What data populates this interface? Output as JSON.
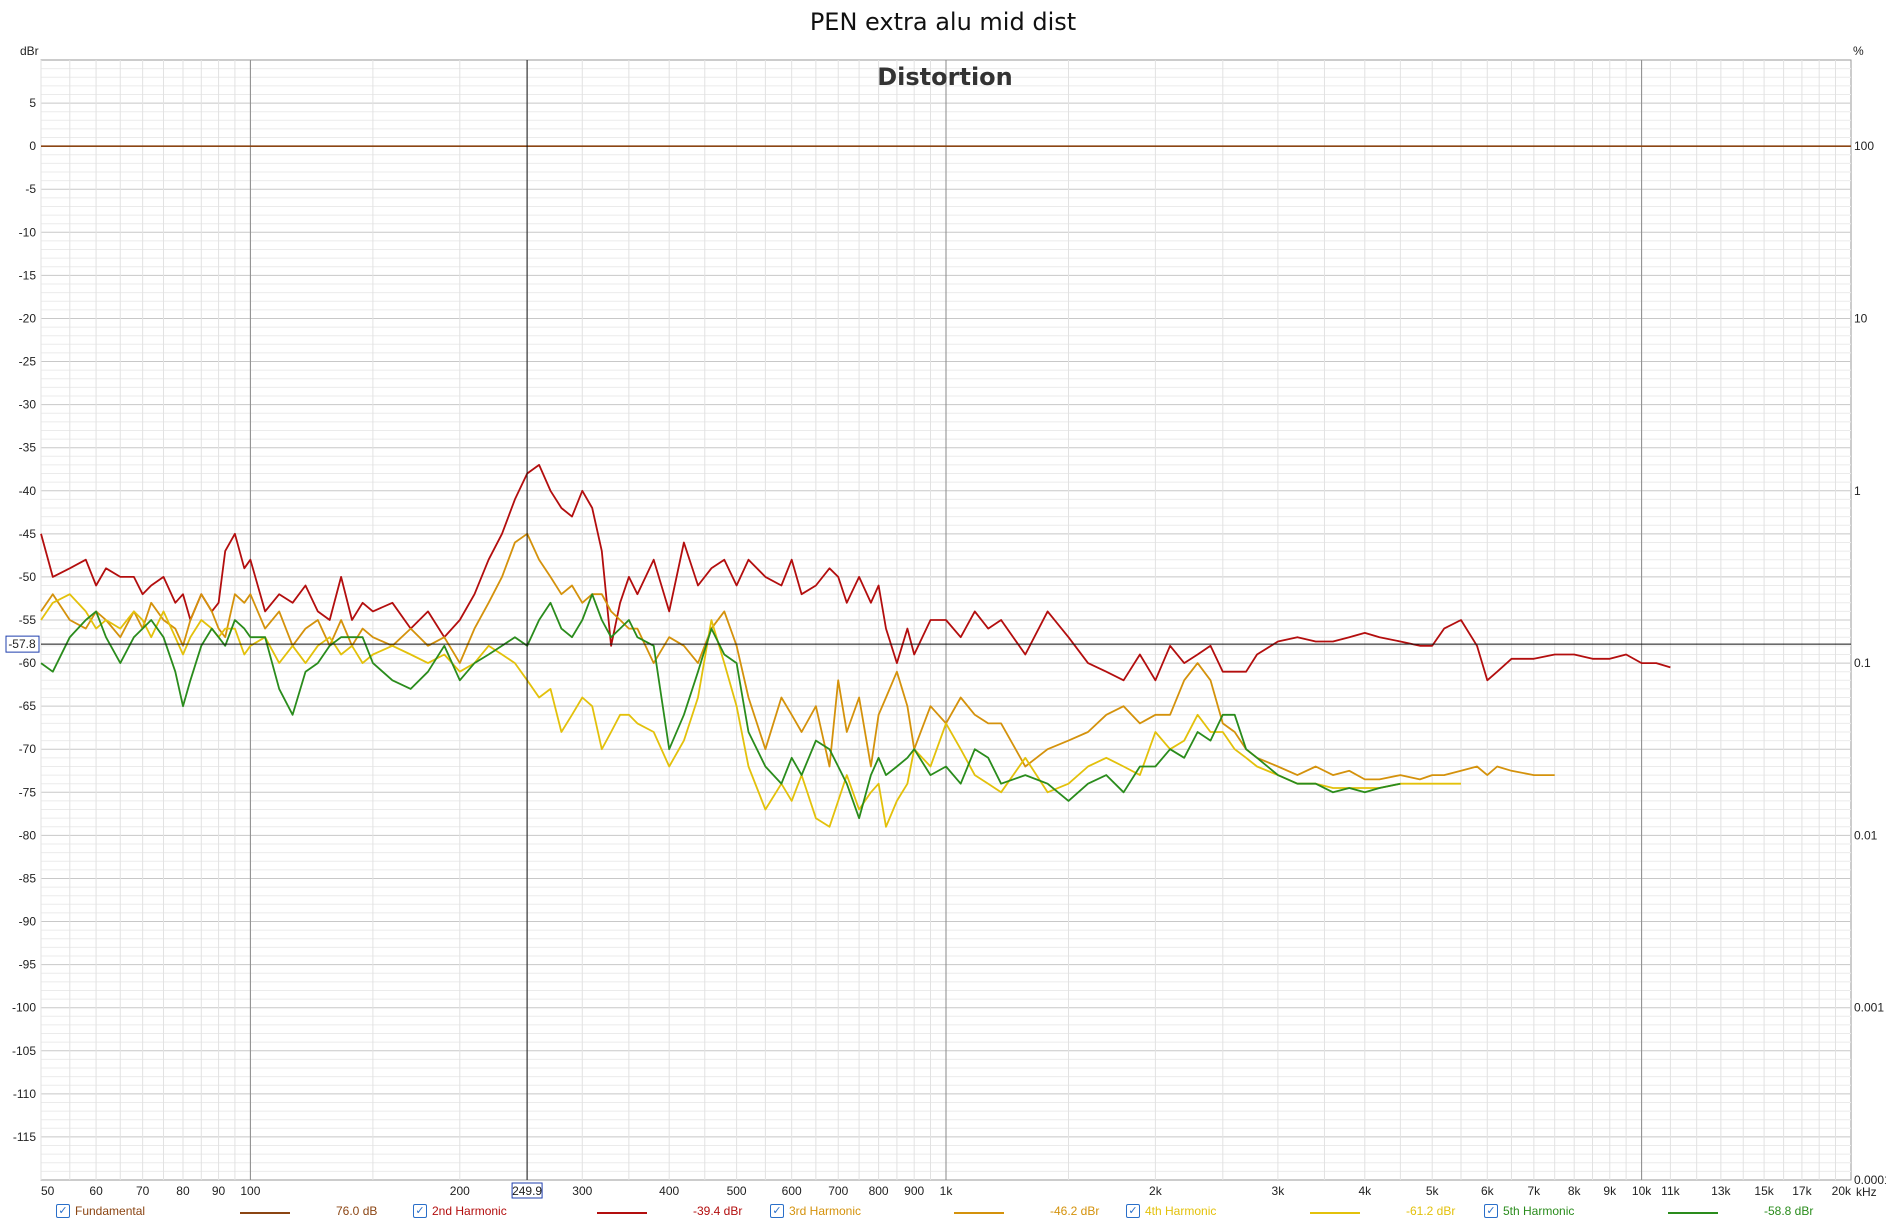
{
  "chart_data": {
    "type": "line",
    "title": "PEN extra alu mid dist",
    "subtitle": "Distortion",
    "ylabel": "dBr",
    "y2label": "%",
    "xunit": "kHz",
    "x_scale": "log",
    "xlim": [
      50,
      20000
    ],
    "ylim": [
      -120,
      10
    ],
    "y_ticks": [
      5,
      0,
      -5,
      -10,
      -15,
      -20,
      -25,
      -30,
      -35,
      -40,
      -45,
      -50,
      -55,
      -60,
      -65,
      -70,
      -75,
      -80,
      -85,
      -90,
      -95,
      -100,
      -105,
      -110,
      -115
    ],
    "x_ticks": [
      {
        "v": 50,
        "l": "50"
      },
      {
        "v": 60,
        "l": "60"
      },
      {
        "v": 70,
        "l": "70"
      },
      {
        "v": 80,
        "l": "80"
      },
      {
        "v": 90,
        "l": "90"
      },
      {
        "v": 100,
        "l": "100"
      },
      {
        "v": 200,
        "l": "200"
      },
      {
        "v": 300,
        "l": "300"
      },
      {
        "v": 400,
        "l": "400"
      },
      {
        "v": 500,
        "l": "500"
      },
      {
        "v": 600,
        "l": "600"
      },
      {
        "v": 700,
        "l": "700"
      },
      {
        "v": 800,
        "l": "800"
      },
      {
        "v": 900,
        "l": "900"
      },
      {
        "v": 1000,
        "l": "1k"
      },
      {
        "v": 2000,
        "l": "2k"
      },
      {
        "v": 3000,
        "l": "3k"
      },
      {
        "v": 4000,
        "l": "4k"
      },
      {
        "v": 5000,
        "l": "5k"
      },
      {
        "v": 6000,
        "l": "6k"
      },
      {
        "v": 7000,
        "l": "7k"
      },
      {
        "v": 8000,
        "l": "8k"
      },
      {
        "v": 9000,
        "l": "9k"
      },
      {
        "v": 10000,
        "l": "10k"
      },
      {
        "v": 11000,
        "l": "11k"
      },
      {
        "v": 13000,
        "l": "13k"
      },
      {
        "v": 15000,
        "l": "15k"
      },
      {
        "v": 17000,
        "l": "17k"
      },
      {
        "v": 20000,
        "l": "20k"
      }
    ],
    "y2_ticks": [
      {
        "v": 0,
        "l": "100"
      },
      {
        "v": -20,
        "l": "10"
      },
      {
        "v": -40,
        "l": "1"
      },
      {
        "v": -60,
        "l": "0.1"
      },
      {
        "v": -80,
        "l": "0.01"
      },
      {
        "v": -100,
        "l": "0.001"
      },
      {
        "v": -120,
        "l": "0.0001"
      }
    ],
    "cursor": {
      "x": 249.9,
      "y": -57.8,
      "x_label": "249.9",
      "y_label": "-57.8"
    },
    "series": [
      {
        "name": "Fundamental",
        "value": "76.0 dB",
        "color": "#8b4513",
        "x": [
          50,
          20000
        ],
        "y": [
          0,
          0
        ]
      },
      {
        "name": "2nd Harmonic",
        "value": "-39.4 dBr",
        "color": "#b30e0e",
        "x": [
          50,
          52,
          55,
          58,
          60,
          62,
          65,
          68,
          70,
          72,
          75,
          78,
          80,
          82,
          85,
          88,
          90,
          92,
          95,
          98,
          100,
          105,
          110,
          115,
          120,
          125,
          130,
          135,
          140,
          145,
          150,
          160,
          170,
          180,
          190,
          200,
          210,
          220,
          230,
          240,
          250,
          260,
          270,
          280,
          290,
          300,
          310,
          320,
          330,
          340,
          350,
          360,
          380,
          400,
          420,
          440,
          460,
          480,
          500,
          520,
          550,
          580,
          600,
          620,
          650,
          680,
          700,
          720,
          750,
          780,
          800,
          820,
          850,
          880,
          900,
          950,
          1000,
          1050,
          1100,
          1150,
          1200,
          1300,
          1400,
          1500,
          1600,
          1700,
          1800,
          1900,
          2000,
          2100,
          2200,
          2300,
          2400,
          2500,
          2600,
          2700,
          2800,
          3000,
          3200,
          3400,
          3600,
          3800,
          4000,
          4200,
          4500,
          4800,
          5000,
          5200,
          5500,
          5800,
          6000,
          6200,
          6500,
          7000,
          7500,
          8000,
          8500,
          9000,
          9500,
          10000,
          10500,
          11000
        ],
        "y": [
          -45,
          -50,
          -49,
          -48,
          -51,
          -49,
          -50,
          -50,
          -52,
          -51,
          -50,
          -53,
          -52,
          -55,
          -52,
          -54,
          -53,
          -47,
          -45,
          -49,
          -48,
          -54,
          -52,
          -53,
          -51,
          -54,
          -55,
          -50,
          -55,
          -53,
          -54,
          -53,
          -56,
          -54,
          -57,
          -55,
          -52,
          -48,
          -45,
          -41,
          -38,
          -37,
          -40,
          -42,
          -43,
          -40,
          -42,
          -47,
          -58,
          -53,
          -50,
          -52,
          -48,
          -54,
          -46,
          -51,
          -49,
          -48,
          -51,
          -48,
          -50,
          -51,
          -48,
          -52,
          -51,
          -49,
          -50,
          -53,
          -50,
          -53,
          -51,
          -56,
          -60,
          -56,
          -59,
          -55,
          -55,
          -57,
          -54,
          -56,
          -55,
          -59,
          -54,
          -57,
          -60,
          -61,
          -62,
          -59,
          -62,
          -58,
          -60,
          -59,
          -58,
          -61,
          -61,
          -61,
          -59,
          -57.5,
          -57,
          -57.5,
          -57.5,
          -57,
          -56.5,
          -57,
          -57.5,
          -58,
          -58,
          -56,
          -55,
          -58,
          -62,
          -61,
          -59.5,
          -59.5,
          -59,
          -59,
          -59.5,
          -59.5,
          -59,
          -60,
          -60,
          -60.5
        ]
      },
      {
        "name": "3rd Harmonic",
        "value": "-46.2 dBr",
        "color": "#d4920c",
        "x": [
          50,
          52,
          55,
          58,
          60,
          62,
          65,
          68,
          70,
          72,
          75,
          78,
          80,
          82,
          85,
          88,
          90,
          92,
          95,
          98,
          100,
          105,
          110,
          115,
          120,
          125,
          130,
          135,
          140,
          145,
          150,
          160,
          170,
          180,
          190,
          200,
          210,
          220,
          230,
          240,
          250,
          260,
          270,
          280,
          290,
          300,
          310,
          320,
          330,
          340,
          350,
          360,
          380,
          400,
          420,
          440,
          460,
          480,
          500,
          520,
          550,
          580,
          600,
          620,
          650,
          680,
          700,
          720,
          750,
          780,
          800,
          820,
          850,
          880,
          900,
          950,
          1000,
          1050,
          1100,
          1150,
          1200,
          1300,
          1400,
          1500,
          1600,
          1700,
          1800,
          1900,
          2000,
          2100,
          2200,
          2300,
          2400,
          2500,
          2600,
          2700,
          2800,
          3000,
          3200,
          3400,
          3600,
          3800,
          4000,
          4200,
          4500,
          4800,
          5000,
          5200,
          5500,
          5800,
          6000,
          6200,
          6500,
          7000,
          7500
        ],
        "y": [
          -54,
          -52,
          -55,
          -56,
          -54,
          -55,
          -57,
          -54,
          -56,
          -53,
          -55,
          -56,
          -58,
          -55,
          -52,
          -54,
          -56,
          -57,
          -52,
          -53,
          -52,
          -56,
          -54,
          -58,
          -56,
          -55,
          -58,
          -55,
          -58,
          -56,
          -57,
          -58,
          -56,
          -58,
          -57,
          -60,
          -56,
          -53,
          -50,
          -46,
          -45,
          -48,
          -50,
          -52,
          -51,
          -53,
          -52,
          -52,
          -54,
          -55,
          -56,
          -56,
          -60,
          -57,
          -58,
          -60,
          -56,
          -54,
          -58,
          -64,
          -70,
          -64,
          -66,
          -68,
          -65,
          -72,
          -62,
          -68,
          -64,
          -72,
          -66,
          -64,
          -61,
          -65,
          -70,
          -65,
          -67,
          -64,
          -66,
          -67,
          -67,
          -72,
          -70,
          -69,
          -68,
          -66,
          -65,
          -67,
          -66,
          -66,
          -62,
          -60,
          -62,
          -67,
          -68,
          -70,
          -71,
          -72,
          -73,
          -72,
          -73,
          -72.5,
          -73.5,
          -73.5,
          -73,
          -73.5,
          -73,
          -73,
          -72.5,
          -72,
          -73,
          -72,
          -72.5,
          -73,
          -73
        ]
      },
      {
        "name": "4th Harmonic",
        "value": "-61.2 dBr",
        "color": "#e3c10b",
        "x": [
          50,
          52,
          55,
          58,
          60,
          62,
          65,
          68,
          70,
          72,
          75,
          78,
          80,
          82,
          85,
          88,
          90,
          92,
          95,
          98,
          100,
          105,
          110,
          115,
          120,
          125,
          130,
          135,
          140,
          145,
          150,
          160,
          170,
          180,
          190,
          200,
          210,
          220,
          230,
          240,
          250,
          260,
          270,
          280,
          290,
          300,
          310,
          320,
          330,
          340,
          350,
          360,
          380,
          400,
          420,
          440,
          460,
          480,
          500,
          520,
          550,
          580,
          600,
          620,
          650,
          680,
          700,
          720,
          750,
          780,
          800,
          820,
          850,
          880,
          900,
          950,
          1000,
          1050,
          1100,
          1150,
          1200,
          1300,
          1400,
          1500,
          1600,
          1700,
          1800,
          1900,
          2000,
          2100,
          2200,
          2300,
          2400,
          2500,
          2600,
          2700,
          2800,
          3000,
          3200,
          3400,
          3600,
          3800,
          4000,
          4200,
          4500,
          4800,
          5000,
          5200,
          5500
        ],
        "y": [
          -55,
          -53,
          -52,
          -54,
          -56,
          -55,
          -56,
          -54,
          -55,
          -57,
          -54,
          -57,
          -59,
          -57,
          -55,
          -56,
          -57,
          -56,
          -56,
          -59,
          -58,
          -57,
          -60,
          -58,
          -60,
          -58,
          -57,
          -59,
          -58,
          -60,
          -59,
          -58,
          -59,
          -60,
          -59,
          -61,
          -60,
          -58,
          -59,
          -60,
          -62,
          -64,
          -63,
          -68,
          -66,
          -64,
          -65,
          -70,
          -68,
          -66,
          -66,
          -67,
          -68,
          -72,
          -69,
          -64,
          -55,
          -60,
          -65,
          -72,
          -77,
          -74,
          -76,
          -73,
          -78,
          -79,
          -76,
          -73,
          -77,
          -75,
          -74,
          -79,
          -76,
          -74,
          -70,
          -72,
          -67,
          -70,
          -73,
          -74,
          -75,
          -71,
          -75,
          -74,
          -72,
          -71,
          -72,
          -73,
          -68,
          -70,
          -69,
          -66,
          -68,
          -68,
          -70,
          -71,
          -72,
          -73,
          -74,
          -74,
          -74.5,
          -74.5,
          -74.5,
          -74.5,
          -74,
          -74,
          -74,
          -74,
          -74
        ]
      },
      {
        "name": "5th Harmonic",
        "value": "-58.8 dBr",
        "color": "#2a8c1c",
        "x": [
          50,
          52,
          55,
          58,
          60,
          62,
          65,
          68,
          70,
          72,
          75,
          78,
          80,
          82,
          85,
          88,
          90,
          92,
          95,
          98,
          100,
          105,
          110,
          115,
          120,
          125,
          130,
          135,
          140,
          145,
          150,
          160,
          170,
          180,
          190,
          200,
          210,
          220,
          230,
          240,
          250,
          260,
          270,
          280,
          290,
          300,
          310,
          320,
          330,
          340,
          350,
          360,
          380,
          400,
          420,
          440,
          460,
          480,
          500,
          520,
          550,
          580,
          600,
          620,
          650,
          680,
          700,
          720,
          750,
          780,
          800,
          820,
          850,
          880,
          900,
          950,
          1000,
          1050,
          1100,
          1150,
          1200,
          1300,
          1400,
          1500,
          1600,
          1700,
          1800,
          1900,
          2000,
          2100,
          2200,
          2300,
          2400,
          2500,
          2600,
          2700,
          2800,
          3000,
          3200,
          3400,
          3600,
          3800,
          4000,
          4200,
          4500
        ],
        "y": [
          -60,
          -61,
          -57,
          -55,
          -54,
          -57,
          -60,
          -57,
          -56,
          -55,
          -57,
          -61,
          -65,
          -62,
          -58,
          -56,
          -57,
          -58,
          -55,
          -56,
          -57,
          -57,
          -63,
          -66,
          -61,
          -60,
          -58,
          -57,
          -57,
          -57,
          -60,
          -62,
          -63,
          -61,
          -58,
          -62,
          -60,
          -59,
          -58,
          -57,
          -58,
          -55,
          -53,
          -56,
          -57,
          -55,
          -52,
          -55,
          -57,
          -56,
          -55,
          -57,
          -58,
          -70,
          -66,
          -61,
          -56,
          -59,
          -60,
          -68,
          -72,
          -74,
          -71,
          -73,
          -69,
          -70,
          -72,
          -74,
          -78,
          -73,
          -71,
          -73,
          -72,
          -71,
          -70,
          -73,
          -72,
          -74,
          -70,
          -71,
          -74,
          -73,
          -74,
          -76,
          -74,
          -73,
          -75,
          -72,
          -72,
          -70,
          -71,
          -68,
          -69,
          -66,
          -66,
          -70,
          -71,
          -73,
          -74,
          -74,
          -75,
          -74.5,
          -75,
          -74.5,
          -74
        ]
      }
    ]
  }
}
